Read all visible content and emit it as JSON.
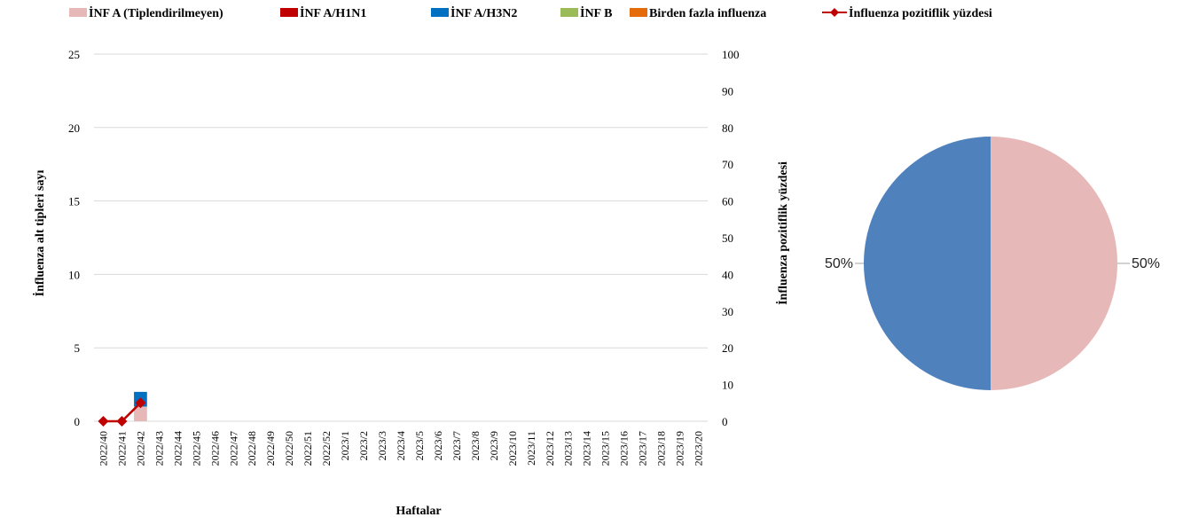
{
  "legend": [
    {
      "label": "İNF A (Tiplendirilmeyen)",
      "color": "#e6b8b7",
      "kind": "bar"
    },
    {
      "label": "İNF A/H1N1",
      "color": "#c00000",
      "kind": "bar"
    },
    {
      "label": "İNF A/H3N2",
      "color": "#0070c0",
      "kind": "bar"
    },
    {
      "label": "İNF B",
      "color": "#9bbb59",
      "kind": "bar"
    },
    {
      "label": "Birden fazla influenza",
      "color": "#e46c0a",
      "kind": "bar"
    },
    {
      "label": "İnfluenza pozitiflik yüzdesi",
      "color": "#c00000",
      "kind": "line"
    }
  ],
  "chart_data": [
    {
      "type": "bar",
      "stacked": true,
      "xlabel": "Haftalar",
      "ylabel": "İnfluenza alt tipleri sayı",
      "y2label": "İnfluenza pozitiflik yüzdesi",
      "ylim": [
        0,
        25
      ],
      "yticks": [
        0,
        5,
        10,
        15,
        20,
        25
      ],
      "y2lim": [
        0,
        100
      ],
      "y2ticks": [
        0,
        10,
        20,
        30,
        40,
        50,
        60,
        70,
        80,
        90,
        100
      ],
      "grid": true,
      "legend_position": "top",
      "categories": [
        "2022/40",
        "2022/41",
        "2022/42",
        "2022/43",
        "2022/44",
        "2022/45",
        "2022/46",
        "2022/47",
        "2022/48",
        "2022/49",
        "2022/50",
        "2022/51",
        "2022/52",
        "2023/1",
        "2023/2",
        "2023/3",
        "2023/4",
        "2023/5",
        "2023/6",
        "2023/7",
        "2023/8",
        "2023/9",
        "2023/10",
        "2023/11",
        "2023/12",
        "2023/13",
        "2023/14",
        "2023/15",
        "2023/16",
        "2023/17",
        "2023/18",
        "2023/19",
        "2023/20"
      ],
      "series": [
        {
          "name": "İNF A (Tiplendirilmeyen)",
          "color": "#e6b8b7",
          "values": [
            0,
            0,
            1,
            0,
            0,
            0,
            0,
            0,
            0,
            0,
            0,
            0,
            0,
            0,
            0,
            0,
            0,
            0,
            0,
            0,
            0,
            0,
            0,
            0,
            0,
            0,
            0,
            0,
            0,
            0,
            0,
            0,
            0
          ]
        },
        {
          "name": "İNF A/H1N1",
          "color": "#c00000",
          "values": [
            0,
            0,
            0,
            0,
            0,
            0,
            0,
            0,
            0,
            0,
            0,
            0,
            0,
            0,
            0,
            0,
            0,
            0,
            0,
            0,
            0,
            0,
            0,
            0,
            0,
            0,
            0,
            0,
            0,
            0,
            0,
            0,
            0
          ]
        },
        {
          "name": "İNF A/H3N2",
          "color": "#0070c0",
          "values": [
            0,
            0,
            1,
            0,
            0,
            0,
            0,
            0,
            0,
            0,
            0,
            0,
            0,
            0,
            0,
            0,
            0,
            0,
            0,
            0,
            0,
            0,
            0,
            0,
            0,
            0,
            0,
            0,
            0,
            0,
            0,
            0,
            0
          ]
        },
        {
          "name": "İNF B",
          "color": "#9bbb59",
          "values": [
            0,
            0,
            0,
            0,
            0,
            0,
            0,
            0,
            0,
            0,
            0,
            0,
            0,
            0,
            0,
            0,
            0,
            0,
            0,
            0,
            0,
            0,
            0,
            0,
            0,
            0,
            0,
            0,
            0,
            0,
            0,
            0,
            0
          ]
        },
        {
          "name": "Birden fazla influenza",
          "color": "#e46c0a",
          "values": [
            0,
            0,
            0,
            0,
            0,
            0,
            0,
            0,
            0,
            0,
            0,
            0,
            0,
            0,
            0,
            0,
            0,
            0,
            0,
            0,
            0,
            0,
            0,
            0,
            0,
            0,
            0,
            0,
            0,
            0,
            0,
            0,
            0
          ]
        }
      ],
      "line_series": {
        "name": "İnfluenza pozitiflik yüzdesi",
        "color": "#c00000",
        "axis": "y2",
        "x": [
          "2022/40",
          "2022/41",
          "2022/42"
        ],
        "values": [
          0,
          0,
          5
        ]
      }
    },
    {
      "type": "pie",
      "slices": [
        {
          "label": "50%",
          "value": 50,
          "color": "#e6b8b7"
        },
        {
          "label": "50%",
          "value": 50,
          "color": "#4f81bd"
        }
      ]
    }
  ]
}
